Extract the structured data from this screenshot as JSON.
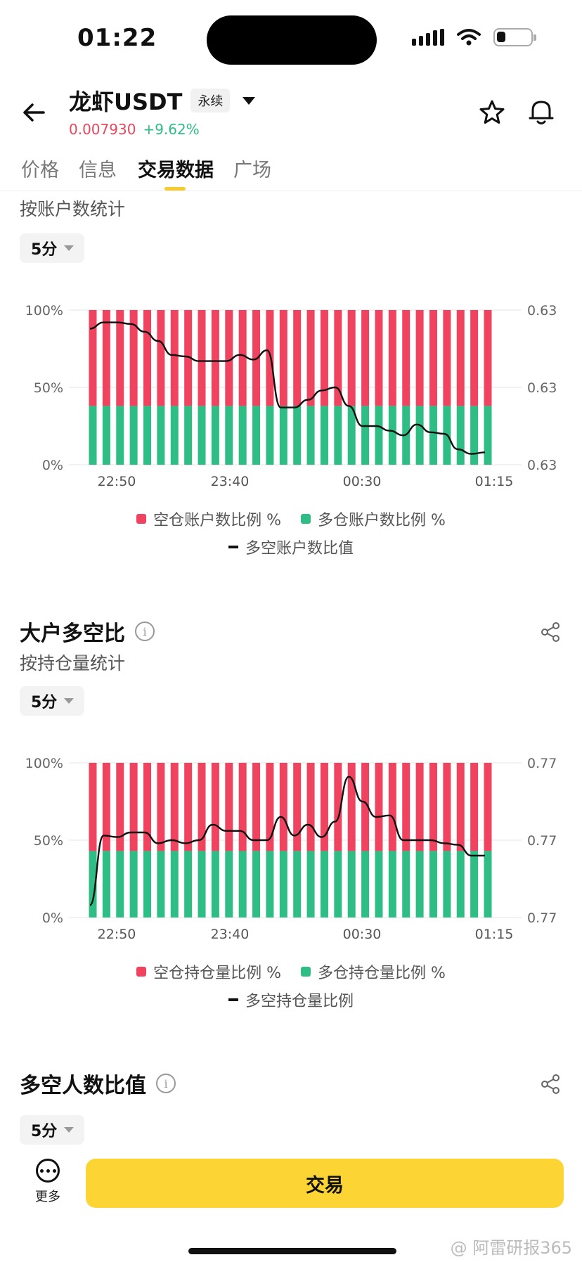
{
  "status": {
    "time": "01:22"
  },
  "header": {
    "title": "龙虾USDT",
    "badge": "永续",
    "price": "0.007930",
    "change": "+9.62%"
  },
  "tabs": [
    {
      "label": "价格"
    },
    {
      "label": "信息"
    },
    {
      "label": "交易数据"
    },
    {
      "label": "广场"
    }
  ],
  "section1": {
    "subtitle": "按账户数统计",
    "interval": "5分",
    "legend": [
      "空仓账户数比例 %",
      "多仓账户数比例 %",
      "多空账户数比值"
    ]
  },
  "section2": {
    "title": "大户多空比",
    "subtitle": "按持仓量统计",
    "interval": "5分",
    "legend": [
      "空仓持仓量比例 %",
      "多仓持仓量比例 %",
      "多空持仓量比例"
    ]
  },
  "section3": {
    "title": "多空人数比值",
    "interval": "5分"
  },
  "bottom": {
    "more": "更多",
    "trade": "交易"
  },
  "watermark": "@ 阿雷研报365",
  "colors": {
    "short": "#f0435f",
    "long": "#2ebd85",
    "accent": "#fcd535",
    "line": "#111111"
  },
  "chart_data": [
    {
      "type": "bar",
      "title": "",
      "x_ticks": [
        "22:50",
        "23:40",
        "00:30",
        "01:15"
      ],
      "y_left_ticks": [
        "0%",
        "50%",
        "100%"
      ],
      "y_right_ticks": [
        "0.63",
        "0.63",
        "0.63"
      ],
      "bar_count": 30,
      "long_pct": 38,
      "short_pct": 62,
      "ratio_line_rel": [
        0.88,
        0.92,
        0.92,
        0.91,
        0.86,
        0.8,
        0.71,
        0.7,
        0.67,
        0.67,
        0.67,
        0.71,
        0.68,
        0.74,
        0.37,
        0.37,
        0.42,
        0.48,
        0.5,
        0.38,
        0.25,
        0.25,
        0.22,
        0.19,
        0.26,
        0.21,
        0.2,
        0.1,
        0.07,
        0.08
      ],
      "legend": [
        "空仓账户数比例 %",
        "多仓账户数比例 %",
        "多空账户数比值"
      ]
    },
    {
      "type": "bar",
      "title": "",
      "x_ticks": [
        "22:50",
        "23:40",
        "00:30",
        "01:15"
      ],
      "y_left_ticks": [
        "0%",
        "50%",
        "100%"
      ],
      "y_right_ticks": [
        "0.77",
        "0.77",
        "0.77"
      ],
      "bar_count": 30,
      "long_pct": 43,
      "short_pct": 57,
      "ratio_line_rel": [
        0.08,
        0.53,
        0.52,
        0.55,
        0.55,
        0.48,
        0.5,
        0.48,
        0.5,
        0.6,
        0.56,
        0.56,
        0.5,
        0.5,
        0.65,
        0.53,
        0.6,
        0.52,
        0.62,
        0.91,
        0.75,
        0.65,
        0.66,
        0.5,
        0.5,
        0.5,
        0.48,
        0.47,
        0.4,
        0.4
      ],
      "legend": [
        "空仓持仓量比例 %",
        "多仓持仓量比例 %",
        "多空持仓量比例"
      ]
    }
  ]
}
